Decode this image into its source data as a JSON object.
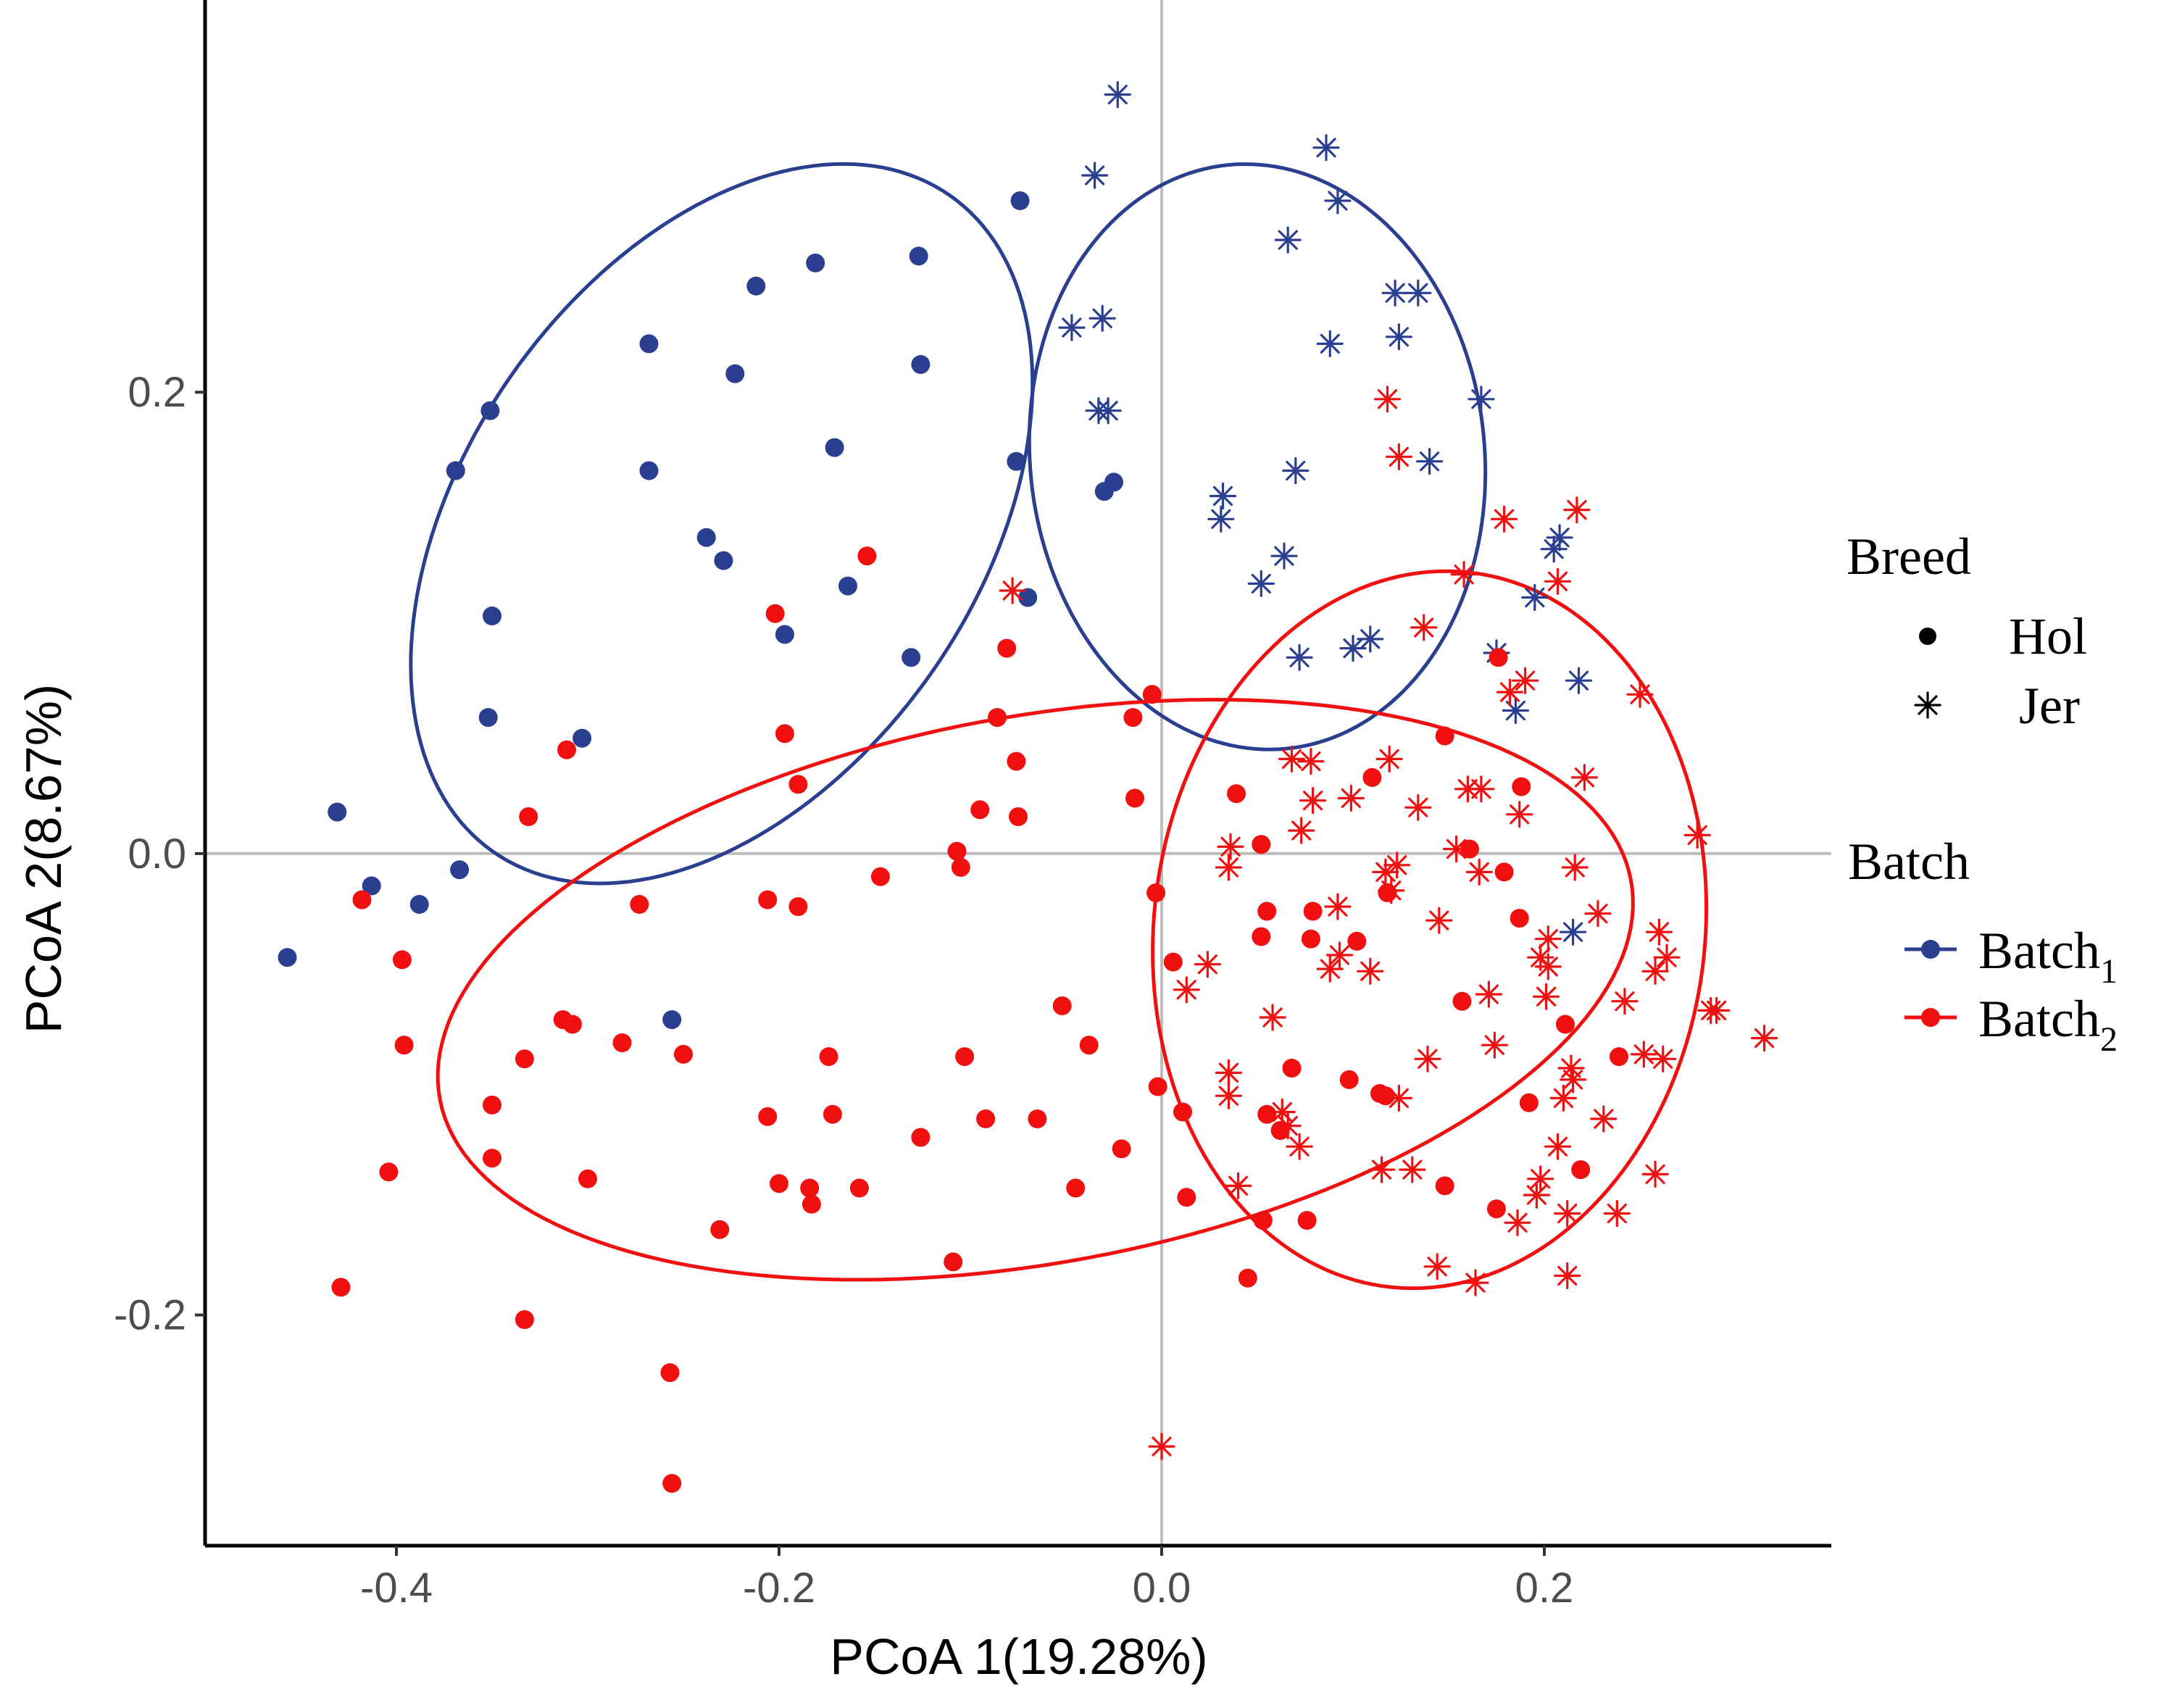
{
  "chart_data": {
    "type": "scatter",
    "xlabel": "PCoA 1(19.28%)",
    "ylabel": "PCoA 2(8.67%)",
    "xlim": [
      -0.5,
      0.35
    ],
    "ylim": [
      -0.3,
      0.37
    ],
    "x_ticks": [
      -0.4,
      -0.2,
      0.0,
      0.2
    ],
    "x_tick_labels": [
      "-0.4",
      "-0.2",
      "0.0",
      "0.2"
    ],
    "y_ticks": [
      -0.2,
      0.0,
      0.2
    ],
    "y_tick_labels": [
      "-0.2",
      "0.0",
      "0.2"
    ],
    "reference_lines": {
      "x": 0,
      "y": 0
    },
    "grid": false,
    "legend": {
      "placement": "right",
      "shape_title": "Breed",
      "shape_entries": [
        {
          "label": "Hol",
          "marker": "circle"
        },
        {
          "label": "Jer",
          "marker": "asterisk"
        }
      ],
      "color_title": "Batch",
      "color_entries": [
        {
          "label": "Batch",
          "subscript": "1",
          "color": "#2b3f91"
        },
        {
          "label": "Batch",
          "subscript": "2",
          "color": "#f01010"
        }
      ]
    },
    "colors": {
      "Batch1": "#2b3f91",
      "Batch2": "#f01010"
    },
    "ellipses": [
      {
        "group": "Batch1-Hol",
        "color": "#2b3f91",
        "center": [
          -0.23,
          0.143
        ],
        "rx": 0.188,
        "ry": 0.124,
        "angle_deg": 42
      },
      {
        "group": "Batch1-Jer",
        "color": "#2b3f91",
        "center": [
          0.05,
          0.172
        ],
        "rx": 0.128,
        "ry": 0.118,
        "angle_deg": -70
      },
      {
        "group": "Batch2-Hol",
        "color": "#f01010",
        "center": [
          -0.066,
          -0.059
        ],
        "rx": 0.315,
        "ry": 0.119,
        "angle_deg": 8
      },
      {
        "group": "Batch2-Jer",
        "color": "#f01010",
        "center": [
          0.14,
          -0.033
        ],
        "rx": 0.143,
        "ry": 0.157,
        "angle_deg": -20
      }
    ],
    "series": [
      {
        "name": "Batch1-Hol",
        "batch": "Batch1",
        "breed": "Hol",
        "marker": "circle",
        "color": "#2b3f91",
        "points": [
          [
            -0.074,
            0.283
          ],
          [
            -0.181,
            0.256
          ],
          [
            -0.127,
            0.259
          ],
          [
            -0.212,
            0.246
          ],
          [
            -0.268,
            0.221
          ],
          [
            -0.223,
            0.208
          ],
          [
            -0.126,
            0.212
          ],
          [
            -0.351,
            0.192
          ],
          [
            -0.369,
            0.166
          ],
          [
            -0.268,
            0.166
          ],
          [
            -0.171,
            0.176
          ],
          [
            -0.076,
            0.17
          ],
          [
            -0.025,
            0.161
          ],
          [
            -0.03,
            0.157
          ],
          [
            -0.238,
            0.137
          ],
          [
            -0.229,
            0.127
          ],
          [
            -0.164,
            0.116
          ],
          [
            -0.07,
            0.111
          ],
          [
            -0.35,
            0.103
          ],
          [
            -0.197,
            0.095
          ],
          [
            -0.131,
            0.085
          ],
          [
            -0.352,
            0.059
          ],
          [
            -0.303,
            0.05
          ],
          [
            -0.431,
            0.018
          ],
          [
            -0.367,
            -0.007
          ],
          [
            -0.413,
            -0.014
          ],
          [
            -0.388,
            -0.022
          ],
          [
            -0.457,
            -0.045
          ],
          [
            -0.256,
            -0.072
          ]
        ]
      },
      {
        "name": "Batch1-Jer",
        "batch": "Batch1",
        "breed": "Jer",
        "marker": "asterisk",
        "color": "#2b3f91",
        "points": [
          [
            -0.023,
            0.329
          ],
          [
            -0.035,
            0.294
          ],
          [
            0.086,
            0.306
          ],
          [
            0.092,
            0.283
          ],
          [
            0.066,
            0.266
          ],
          [
            -0.047,
            0.228
          ],
          [
            -0.031,
            0.232
          ],
          [
            0.122,
            0.243
          ],
          [
            0.134,
            0.243
          ],
          [
            0.088,
            0.221
          ],
          [
            0.124,
            0.224
          ],
          [
            -0.033,
            0.192
          ],
          [
            -0.028,
            0.192
          ],
          [
            0.167,
            0.197
          ],
          [
            0.07,
            0.166
          ],
          [
            0.14,
            0.17
          ],
          [
            0.032,
            0.155
          ],
          [
            0.031,
            0.145
          ],
          [
            0.064,
            0.129
          ],
          [
            0.205,
            0.132
          ],
          [
            0.208,
            0.137
          ],
          [
            0.052,
            0.117
          ],
          [
            0.195,
            0.111
          ],
          [
            0.1,
            0.089
          ],
          [
            0.109,
            0.093
          ],
          [
            0.175,
            0.087
          ],
          [
            0.072,
            0.085
          ],
          [
            0.218,
            0.075
          ],
          [
            0.185,
            0.062
          ],
          [
            0.215,
            -0.034
          ]
        ]
      },
      {
        "name": "Batch2-Hol",
        "batch": "Batch2",
        "breed": "Hol",
        "marker": "circle",
        "color": "#f01010",
        "points": [
          [
            -0.154,
            0.129
          ],
          [
            -0.202,
            0.104
          ],
          [
            -0.081,
            0.089
          ],
          [
            0.176,
            0.085
          ],
          [
            -0.005,
            0.069
          ],
          [
            -0.015,
            0.059
          ],
          [
            -0.086,
            0.059
          ],
          [
            -0.197,
            0.052
          ],
          [
            0.148,
            0.051
          ],
          [
            -0.311,
            0.045
          ],
          [
            -0.076,
            0.04
          ],
          [
            -0.19,
            0.03
          ],
          [
            0.11,
            0.033
          ],
          [
            0.188,
            0.029
          ],
          [
            0.039,
            0.026
          ],
          [
            -0.014,
            0.024
          ],
          [
            -0.095,
            0.019
          ],
          [
            -0.075,
            0.016
          ],
          [
            -0.331,
            0.016
          ],
          [
            0.161,
            0.002
          ],
          [
            0.052,
            0.004
          ],
          [
            -0.107,
            0.001
          ],
          [
            -0.105,
            -0.006
          ],
          [
            0.179,
            -0.008
          ],
          [
            -0.147,
            -0.01
          ],
          [
            -0.003,
            -0.017
          ],
          [
            0.118,
            -0.017
          ],
          [
            0.055,
            -0.025
          ],
          [
            -0.206,
            -0.02
          ],
          [
            -0.418,
            -0.02
          ],
          [
            -0.273,
            -0.022
          ],
          [
            -0.19,
            -0.023
          ],
          [
            0.079,
            -0.025
          ],
          [
            0.187,
            -0.028
          ],
          [
            0.052,
            -0.036
          ],
          [
            0.102,
            -0.038
          ],
          [
            0.078,
            -0.037
          ],
          [
            -0.397,
            -0.046
          ],
          [
            0.006,
            -0.047
          ],
          [
            0.157,
            -0.064
          ],
          [
            -0.052,
            -0.066
          ],
          [
            -0.313,
            -0.072
          ],
          [
            -0.308,
            -0.074
          ],
          [
            0.211,
            -0.074
          ],
          [
            -0.396,
            -0.083
          ],
          [
            -0.282,
            -0.082
          ],
          [
            -0.038,
            -0.083
          ],
          [
            -0.25,
            -0.087
          ],
          [
            -0.333,
            -0.089
          ],
          [
            -0.174,
            -0.088
          ],
          [
            -0.103,
            -0.088
          ],
          [
            0.239,
            -0.088
          ],
          [
            0.068,
            -0.093
          ],
          [
            0.098,
            -0.098
          ],
          [
            0.114,
            -0.104
          ],
          [
            -0.002,
            -0.101
          ],
          [
            0.117,
            -0.105
          ],
          [
            -0.35,
            -0.109
          ],
          [
            0.192,
            -0.108
          ],
          [
            0.011,
            -0.112
          ],
          [
            0.055,
            -0.113
          ],
          [
            -0.206,
            -0.114
          ],
          [
            -0.172,
            -0.113
          ],
          [
            -0.092,
            -0.115
          ],
          [
            -0.065,
            -0.115
          ],
          [
            0.062,
            -0.12
          ],
          [
            -0.126,
            -0.123
          ],
          [
            -0.021,
            -0.128
          ],
          [
            -0.35,
            -0.132
          ],
          [
            -0.3,
            -0.141
          ],
          [
            -0.404,
            -0.138
          ],
          [
            0.219,
            -0.137
          ],
          [
            -0.2,
            -0.143
          ],
          [
            -0.184,
            -0.145
          ],
          [
            -0.158,
            -0.145
          ],
          [
            -0.045,
            -0.145
          ],
          [
            0.148,
            -0.144
          ],
          [
            -0.183,
            -0.152
          ],
          [
            0.013,
            -0.149
          ],
          [
            0.175,
            -0.154
          ],
          [
            0.053,
            -0.159
          ],
          [
            0.076,
            -0.159
          ],
          [
            -0.231,
            -0.163
          ],
          [
            -0.109,
            -0.177
          ],
          [
            0.045,
            -0.184
          ],
          [
            -0.429,
            -0.188
          ],
          [
            -0.333,
            -0.202
          ],
          [
            -0.257,
            -0.225
          ],
          [
            -0.256,
            -0.273
          ]
        ]
      },
      {
        "name": "Batch2-Jer",
        "batch": "Batch2",
        "breed": "Jer",
        "marker": "asterisk",
        "color": "#f01010",
        "points": [
          [
            0.118,
            0.197
          ],
          [
            0.124,
            0.172
          ],
          [
            0.217,
            0.149
          ],
          [
            0.179,
            0.145
          ],
          [
            0.158,
            0.121
          ],
          [
            0.207,
            0.118
          ],
          [
            -0.078,
            0.114
          ],
          [
            0.137,
            0.098
          ],
          [
            0.19,
            0.075
          ],
          [
            0.182,
            0.07
          ],
          [
            0.25,
            0.069
          ],
          [
            0.068,
            0.041
          ],
          [
            0.078,
            0.04
          ],
          [
            0.119,
            0.041
          ],
          [
            0.099,
            0.024
          ],
          [
            0.079,
            0.023
          ],
          [
            0.221,
            0.033
          ],
          [
            0.16,
            0.028
          ],
          [
            0.167,
            0.028
          ],
          [
            0.134,
            0.02
          ],
          [
            0.187,
            0.017
          ],
          [
            0.073,
            0.01
          ],
          [
            0.036,
            0.003
          ],
          [
            0.154,
            0.002
          ],
          [
            0.28,
            0.008
          ],
          [
            0.035,
            -0.006
          ],
          [
            0.123,
            -0.005
          ],
          [
            0.117,
            -0.008
          ],
          [
            0.216,
            -0.006
          ],
          [
            0.166,
            -0.008
          ],
          [
            0.12,
            -0.016
          ],
          [
            0.092,
            -0.023
          ],
          [
            0.228,
            -0.026
          ],
          [
            0.145,
            -0.029
          ],
          [
            0.202,
            -0.037
          ],
          [
            0.26,
            -0.034
          ],
          [
            0.093,
            -0.044
          ],
          [
            0.198,
            -0.045
          ],
          [
            0.264,
            -0.045
          ],
          [
            0.024,
            -0.048
          ],
          [
            0.202,
            -0.049
          ],
          [
            0.088,
            -0.05
          ],
          [
            0.109,
            -0.051
          ],
          [
            0.258,
            -0.051
          ],
          [
            0.013,
            -0.059
          ],
          [
            0.171,
            -0.061
          ],
          [
            0.201,
            -0.062
          ],
          [
            0.242,
            -0.064
          ],
          [
            0.058,
            -0.071
          ],
          [
            0.287,
            -0.068
          ],
          [
            0.29,
            -0.068
          ],
          [
            0.174,
            -0.083
          ],
          [
            0.252,
            -0.087
          ],
          [
            0.262,
            -0.089
          ],
          [
            0.139,
            -0.089
          ],
          [
            0.035,
            -0.095
          ],
          [
            0.214,
            -0.093
          ],
          [
            0.215,
            -0.098
          ],
          [
            0.035,
            -0.105
          ],
          [
            0.063,
            -0.112
          ],
          [
            0.124,
            -0.106
          ],
          [
            0.21,
            -0.106
          ],
          [
            0.066,
            -0.118
          ],
          [
            0.072,
            -0.127
          ],
          [
            0.231,
            -0.115
          ],
          [
            0.207,
            -0.127
          ],
          [
            0.115,
            -0.137
          ],
          [
            0.131,
            -0.137
          ],
          [
            0.258,
            -0.139
          ],
          [
            0.198,
            -0.141
          ],
          [
            0.04,
            -0.144
          ],
          [
            0.196,
            -0.148
          ],
          [
            0.212,
            -0.156
          ],
          [
            0.186,
            -0.16
          ],
          [
            0.238,
            -0.156
          ],
          [
            0.144,
            -0.179
          ],
          [
            0.164,
            -0.186
          ],
          [
            0.212,
            -0.183
          ],
          [
            0.315,
            -0.08
          ],
          [
            0.0,
            -0.257
          ]
        ]
      }
    ]
  }
}
